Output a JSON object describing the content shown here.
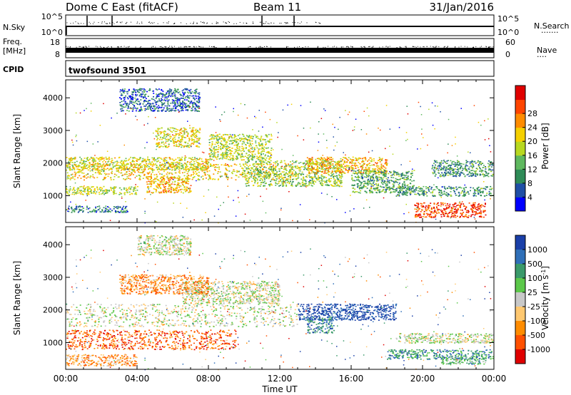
{
  "header": {
    "station": "Dome C East (fitACF)",
    "beam": "Beam 11",
    "date": "31/Jan/2016"
  },
  "nsky_panel": {
    "left_label": "N.Sky",
    "left_ticks": [
      "10^5",
      "10^0"
    ],
    "right_ticks": [
      "10^5",
      "10^0"
    ],
    "right_label": "N.Search",
    "right_line": "·······"
  },
  "freq_panel": {
    "left_label_1": "Freq.",
    "left_label_2": "[MHz]",
    "left_ticks": [
      "18",
      "8"
    ],
    "right_ticks": [
      "60",
      "0"
    ],
    "right_label": "Nave",
    "right_line": "····"
  },
  "cpid_panel": {
    "left_label": "CPID",
    "program": "twofsound 3501"
  },
  "chart_data": [
    {
      "type": "heatmap",
      "name": "power",
      "ylabel": "Slant Range [km]",
      "xlabel": "Time UT",
      "ylim": [
        180,
        4550
      ],
      "y_ticks": [
        "1000",
        "2000",
        "3000",
        "4000"
      ],
      "x_ticks": [
        "00:00",
        "04:00",
        "08:00",
        "12:00",
        "16:00",
        "20:00",
        "00:00"
      ],
      "x_range_hours": [
        0,
        24
      ],
      "colorbar": {
        "label": "Power [dB]",
        "ticks": [
          "4",
          "8",
          "12",
          "16",
          "20",
          "24",
          "28"
        ],
        "range": [
          0,
          32
        ],
        "colors": [
          "#0000ff",
          "#1f4fa6",
          "#2e8b57",
          "#5fb85f",
          "#b8d820",
          "#f5d000",
          "#ff8c00",
          "#ff4500",
          "#e00000"
        ]
      },
      "regions": [
        {
          "t0": 0.0,
          "t1": 13.0,
          "r0": 1500,
          "r1": 2000,
          "level": 0.6
        },
        {
          "t0": 0.0,
          "t1": 8.0,
          "r0": 1800,
          "r1": 2200,
          "level": 0.55
        },
        {
          "t0": 0.0,
          "t1": 4.0,
          "r0": 1050,
          "r1": 1300,
          "level": 0.5
        },
        {
          "t0": 4.5,
          "t1": 7.0,
          "r0": 1100,
          "r1": 1600,
          "level": 0.65
        },
        {
          "t0": 5.0,
          "t1": 7.5,
          "r0": 2500,
          "r1": 3100,
          "level": 0.55
        },
        {
          "t0": 8.0,
          "t1": 11.5,
          "r0": 2100,
          "r1": 2900,
          "level": 0.5
        },
        {
          "t0": 10.0,
          "t1": 15.5,
          "r0": 1300,
          "r1": 2100,
          "level": 0.45
        },
        {
          "t0": 13.5,
          "t1": 18.0,
          "r0": 1700,
          "r1": 2200,
          "level": 0.65
        },
        {
          "t0": 16.0,
          "t1": 19.5,
          "r0": 1100,
          "r1": 1800,
          "level": 0.35
        },
        {
          "t0": 19.5,
          "t1": 23.5,
          "r0": 350,
          "r1": 800,
          "level": 0.85
        },
        {
          "t0": 18.5,
          "t1": 24.0,
          "r0": 1000,
          "r1": 1300,
          "level": 0.3
        },
        {
          "t0": 20.5,
          "t1": 24.0,
          "r0": 1600,
          "r1": 2100,
          "level": 0.3
        },
        {
          "t0": 0.0,
          "t1": 3.5,
          "r0": 500,
          "r1": 700,
          "level": 0.25
        },
        {
          "t0": 3.0,
          "t1": 7.5,
          "r0": 3600,
          "r1": 4300,
          "level": 0.2
        }
      ]
    },
    {
      "type": "heatmap",
      "name": "velocity",
      "ylabel": "Slant Range [km]",
      "xlabel": "Time UT",
      "ylim": [
        180,
        4550
      ],
      "y_ticks": [
        "1000",
        "2000",
        "3000",
        "4000"
      ],
      "x_ticks": [
        "00:00",
        "04:00",
        "08:00",
        "12:00",
        "16:00",
        "20:00",
        "00:00"
      ],
      "x_range_hours": [
        0,
        24
      ],
      "colorbar": {
        "label": "Velocity [m s-1]",
        "label_main": "Velocity [m s",
        "label_sup": "-1",
        "label_end": "]",
        "ticks": [
          "1000",
          "500",
          "100",
          "25",
          "-25",
          "-100",
          "-500",
          "-1000"
        ],
        "colors": [
          "#1a3fa8",
          "#2f6fb8",
          "#3a9a6a",
          "#5cc84a",
          "#c8c8c8",
          "#ffc870",
          "#ff8c00",
          "#ff5000",
          "#e00000"
        ]
      },
      "regions": [
        {
          "t0": 0.0,
          "t1": 13.0,
          "r0": 1500,
          "r1": 2200,
          "level": 0.5
        },
        {
          "t0": 0.0,
          "t1": 9.5,
          "r0": 800,
          "r1": 1400,
          "level": 0.8
        },
        {
          "t0": 6.5,
          "t1": 12.0,
          "r0": 2200,
          "r1": 2900,
          "level": 0.5
        },
        {
          "t0": 3.0,
          "t1": 8.0,
          "r0": 2500,
          "r1": 3100,
          "level": 0.7
        },
        {
          "t0": 13.0,
          "t1": 18.5,
          "r0": 1700,
          "r1": 2200,
          "level": 0.05
        },
        {
          "t0": 13.5,
          "t1": 15.0,
          "r0": 1300,
          "r1": 1800,
          "level": 0.2
        },
        {
          "t0": 18.0,
          "t1": 24.0,
          "r0": 500,
          "r1": 800,
          "level": 0.25
        },
        {
          "t0": 21.0,
          "t1": 23.5,
          "r0": 350,
          "r1": 600,
          "level": 0.35
        },
        {
          "t0": 18.5,
          "t1": 24.0,
          "r0": 1000,
          "r1": 1300,
          "level": 0.5
        },
        {
          "t0": 0.0,
          "t1": 4.0,
          "r0": 300,
          "r1": 650,
          "level": 0.7
        },
        {
          "t0": 4.0,
          "t1": 7.0,
          "r0": 3700,
          "r1": 4300,
          "level": 0.5
        }
      ]
    }
  ]
}
